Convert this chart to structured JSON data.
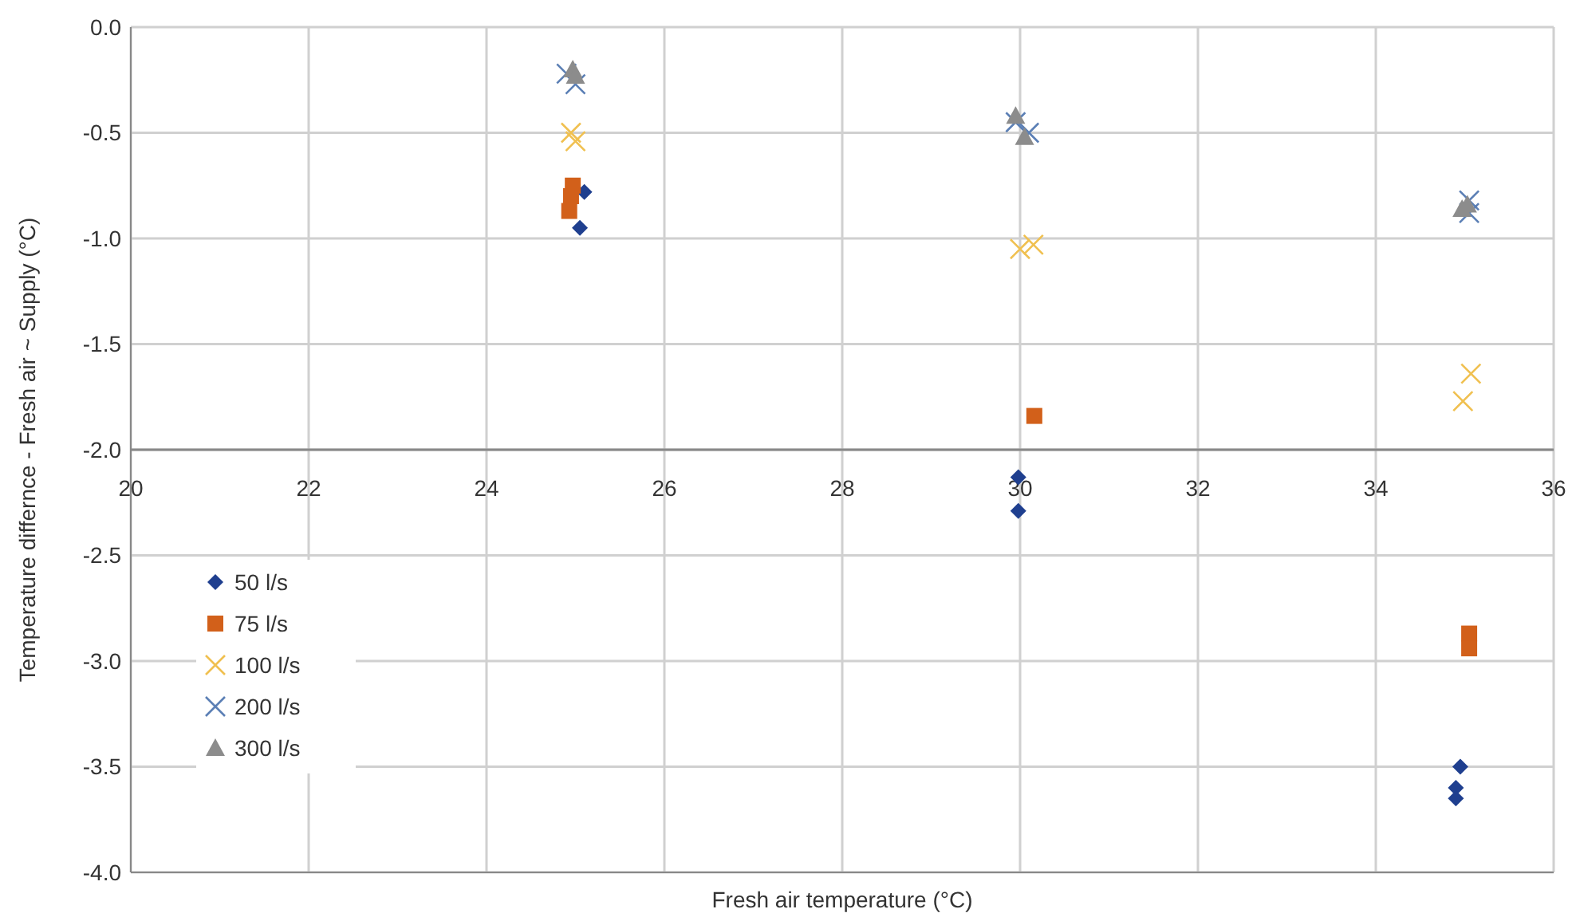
{
  "chart_data": {
    "type": "scatter",
    "xlabel": "Fresh air temperature (°C)",
    "ylabel": "Temperature differnce - Fresh air ~ Supply (°C)",
    "xlim": [
      20,
      36
    ],
    "xticks": [
      20,
      22,
      24,
      26,
      28,
      30,
      32,
      34,
      36
    ],
    "ylim": [
      -4,
      0
    ],
    "yticks": [
      {
        "value": -4,
        "label": "-4.0"
      },
      {
        "value": -3.5,
        "label": "-3.5"
      },
      {
        "value": -3,
        "label": "-3.0"
      },
      {
        "value": -2.5,
        "label": "-2.5"
      },
      {
        "value": -2,
        "label": "-2.0"
      },
      {
        "value": -1.5,
        "label": "-1.5"
      },
      {
        "value": -1,
        "label": "-1.0"
      },
      {
        "value": -0.5,
        "label": "-0.5"
      },
      {
        "value": 0,
        "label": "0.0"
      }
    ],
    "grid": true,
    "legend": "bottom left",
    "series": [
      {
        "name": "50 l/s",
        "color": "#1f3f8f",
        "marker": "diamond",
        "x": [
          25.1,
          25.05,
          29.98,
          29.98,
          34.95,
          34.9,
          34.9
        ],
        "values": [
          -0.78,
          -0.95,
          -2.13,
          -2.29,
          -3.5,
          -3.6,
          -3.65
        ]
      },
      {
        "name": "75 l/s",
        "color": "#d2601a",
        "marker": "square",
        "x": [
          24.97,
          24.95,
          24.93,
          30.16,
          35.05,
          35.05
        ],
        "values": [
          -0.75,
          -0.8,
          -0.87,
          -1.84,
          -2.87,
          -2.94
        ]
      },
      {
        "name": "100 l/s",
        "color": "#f0c050",
        "marker": "cross",
        "x": [
          24.95,
          25.0,
          30.0,
          30.15,
          35.07,
          34.98
        ],
        "values": [
          -0.5,
          -0.54,
          -1.05,
          -1.03,
          -1.64,
          -1.77
        ]
      },
      {
        "name": "200 l/s",
        "color": "#5b7fb5",
        "marker": "cross",
        "x": [
          24.9,
          25.0,
          29.95,
          30.1,
          35.05,
          35.05
        ],
        "values": [
          -0.22,
          -0.27,
          -0.45,
          -0.5,
          -0.82,
          -0.88
        ]
      },
      {
        "name": "300 l/s",
        "color": "#8c8c8c",
        "marker": "triangle",
        "x": [
          24.97,
          25.0,
          29.95,
          30.05,
          34.97,
          35.03
        ],
        "values": [
          -0.2,
          -0.23,
          -0.42,
          -0.52,
          -0.86,
          -0.84
        ]
      }
    ]
  }
}
